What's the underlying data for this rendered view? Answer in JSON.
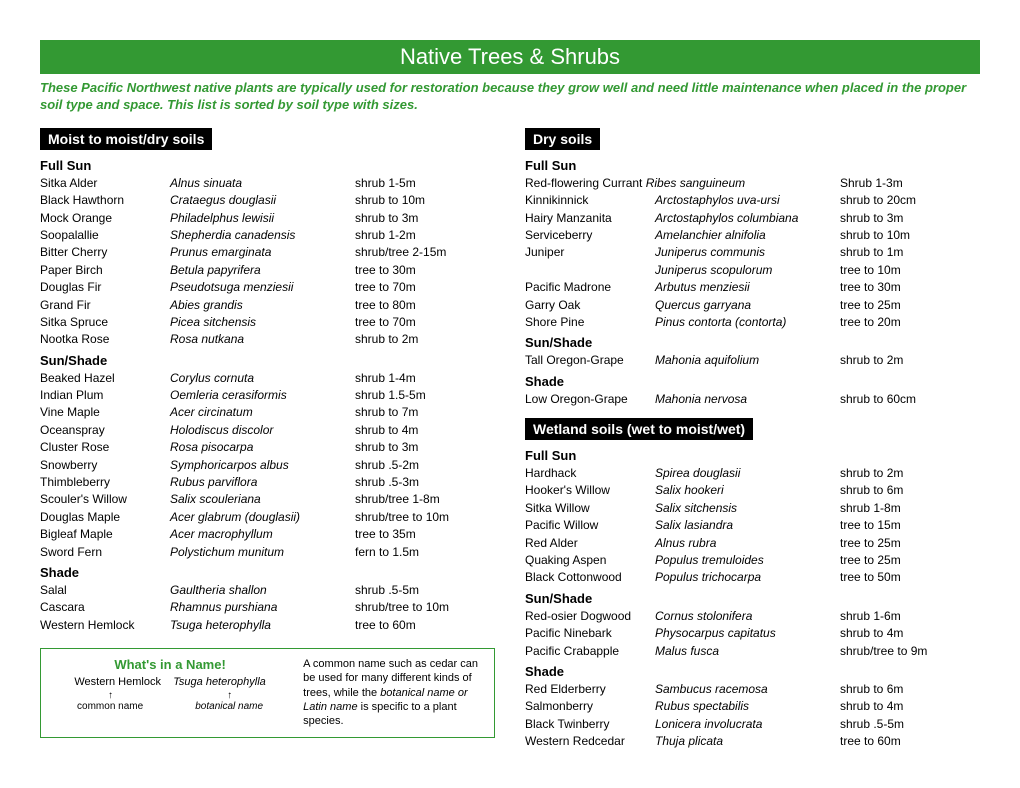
{
  "title": "Native Trees & Shrubs",
  "intro": "These Pacific Northwest native plants are typically used for restoration because they grow well and need little maintenance when placed in the proper soil type and space. This list is sorted by soil type with sizes.",
  "left": {
    "section": "Moist to moist/dry soils",
    "groups": [
      {
        "label": "Full Sun",
        "plants": [
          {
            "c": "Sitka Alder",
            "l": "Alnus sinuata",
            "s": "shrub 1-5m"
          },
          {
            "c": "Black Hawthorn",
            "l": "Crataegus douglasii",
            "s": "shrub to 10m"
          },
          {
            "c": "Mock Orange",
            "l": "Philadelphus lewisii",
            "s": "shrub to 3m"
          },
          {
            "c": "Soopalallie",
            "l": "Shepherdia canadensis",
            "s": "shrub 1-2m"
          },
          {
            "c": "Bitter Cherry",
            "l": "Prunus emarginata",
            "s": "shrub/tree 2-15m"
          },
          {
            "c": "Paper Birch",
            "l": "Betula papyrifera",
            "s": "tree to 30m"
          },
          {
            "c": "Douglas Fir",
            "l": "Pseudotsuga menziesii",
            "s": "tree to 70m"
          },
          {
            "c": "Grand Fir",
            "l": "Abies grandis",
            "s": "tree to 80m"
          },
          {
            "c": "Sitka Spruce",
            "l": "Picea sitchensis",
            "s": "tree to 70m"
          },
          {
            "c": "Nootka Rose",
            "l": "Rosa nutkana",
            "s": "shrub to 2m"
          }
        ]
      },
      {
        "label": "Sun/Shade",
        "plants": [
          {
            "c": "Beaked Hazel",
            "l": "Corylus cornuta",
            "s": "shrub 1-4m"
          },
          {
            "c": "Indian Plum",
            "l": "Oemleria cerasiformis",
            "s": "shrub 1.5-5m"
          },
          {
            "c": "Vine Maple",
            "l": "Acer circinatum",
            "s": "shrub to 7m"
          },
          {
            "c": "Oceanspray",
            "l": "Holodiscus discolor",
            "s": "shrub to 4m"
          },
          {
            "c": "Cluster Rose",
            "l": "Rosa pisocarpa",
            "s": "shrub to 3m"
          },
          {
            "c": "Snowberry",
            "l": "Symphoricarpos albus",
            "s": "shrub .5-2m"
          },
          {
            "c": "Thimbleberry",
            "l": "Rubus parviflora",
            "s": "shrub .5-3m"
          },
          {
            "c": "Scouler's Willow",
            "l": "Salix scouleriana",
            "s": "shrub/tree 1-8m"
          },
          {
            "c": "Douglas Maple",
            "l": "Acer glabrum (douglasii)",
            "s": "shrub/tree to 10m"
          },
          {
            "c": "Bigleaf Maple",
            "l": "Acer macrophyllum",
            "s": "tree to 35m"
          },
          {
            "c": "Sword Fern",
            "l": "Polystichum munitum",
            "s": "fern to 1.5m"
          }
        ]
      },
      {
        "label": "Shade",
        "plants": [
          {
            "c": "Salal",
            "l": "Gaultheria shallon",
            "s": "shrub .5-5m"
          },
          {
            "c": "Cascara",
            "l": "Rhamnus purshiana",
            "s": "shrub/tree to 10m"
          },
          {
            "c": "Western Hemlock",
            "l": "Tsuga heterophylla",
            "s": "tree to 60m"
          }
        ]
      }
    ]
  },
  "right_top": {
    "section": "Dry soils",
    "groups": [
      {
        "label": "Full Sun",
        "plants": [
          {
            "c": "Red-flowering Currant",
            "l": "Ribes sanguineum",
            "s": "Shrub 1-3m",
            "inline": true
          },
          {
            "c": "Kinnikinnick",
            "l": "Arctostaphylos uva-ursi",
            "s": "shrub to 20cm"
          },
          {
            "c": "Hairy Manzanita",
            "l": "Arctostaphylos columbiana",
            "s": "shrub to 3m"
          },
          {
            "c": "Serviceberry",
            "l": "Amelanchier alnifolia",
            "s": "shrub to 10m"
          },
          {
            "c": "Juniper",
            "l": "Juniperus communis",
            "s": "shrub to 1m"
          },
          {
            "c": "",
            "l": "Juniperus scopulorum",
            "s": "tree to 10m"
          },
          {
            "c": "Pacific Madrone",
            "l": "Arbutus menziesii",
            "s": "tree to 30m"
          },
          {
            "c": "Garry Oak",
            "l": "Quercus garryana",
            "s": "tree to 25m"
          },
          {
            "c": "Shore Pine",
            "l": "Pinus contorta (contorta)",
            "s": "tree to 20m"
          }
        ]
      },
      {
        "label": "Sun/Shade",
        "plants": [
          {
            "c": "Tall Oregon-Grape",
            "l": "Mahonia aquifolium",
            "s": "shrub to 2m"
          }
        ]
      },
      {
        "label": "Shade",
        "plants": [
          {
            "c": "Low Oregon-Grape",
            "l": "Mahonia nervosa",
            "s": "shrub to 60cm"
          }
        ]
      }
    ]
  },
  "right_bottom": {
    "section": "Wetland soils (wet to moist/wet)",
    "groups": [
      {
        "label": "Full Sun",
        "plants": [
          {
            "c": "Hardhack",
            "l": "Spirea douglasii",
            "s": "shrub to 2m"
          },
          {
            "c": "Hooker's Willow",
            "l": "Salix hookeri",
            "s": "shrub  to 6m"
          },
          {
            "c": "Sitka Willow",
            "l": "Salix sitchensis",
            "s": "shrub 1-8m"
          },
          {
            "c": "Pacific Willow",
            "l": "Salix lasiandra",
            "s": "tree to 15m"
          },
          {
            "c": "Red Alder",
            "l": "Alnus rubra",
            "s": "tree to 25m"
          },
          {
            "c": "Quaking Aspen",
            "l": "Populus tremuloides",
            "s": "tree to 25m"
          },
          {
            "c": "Black Cottonwood",
            "l": "Populus trichocarpa",
            "s": "tree to 50m"
          }
        ]
      },
      {
        "label": "Sun/Shade",
        "plants": [
          {
            "c": "Red-osier Dogwood",
            "l": "Cornus stolonifera",
            "s": "shrub 1-6m"
          },
          {
            "c": "Pacific Ninebark",
            "l": "Physocarpus capitatus",
            "s": "shrub to 4m"
          },
          {
            "c": "Pacific Crabapple",
            "l": "Malus fusca",
            "s": "shrub/tree to 9m"
          }
        ]
      },
      {
        "label": "Shade",
        "plants": [
          {
            "c": "Red Elderberry",
            "l": "Sambucus racemosa",
            "s": "shrub to 6m"
          },
          {
            "c": "Salmonberry",
            "l": "Rubus spectabilis",
            "s": "shrub to 4m"
          },
          {
            "c": "Black Twinberry",
            "l": "Lonicera involucrata",
            "s": "shrub .5-5m"
          },
          {
            "c": "Western Redcedar",
            "l": "Thuja plicata",
            "s": "tree to 60m"
          }
        ]
      }
    ]
  },
  "namebox": {
    "title": "What's in a Name!",
    "ex_common": "Western Hemlock",
    "ex_latin": "Tsuga heterophylla",
    "label_common": "common name",
    "label_latin": "botanical name",
    "desc_1": "A common name such as cedar can be used for many different kinds of trees, while the ",
    "desc_2": "botanical name or Latin name",
    "desc_3": " is specific to a plant species."
  }
}
